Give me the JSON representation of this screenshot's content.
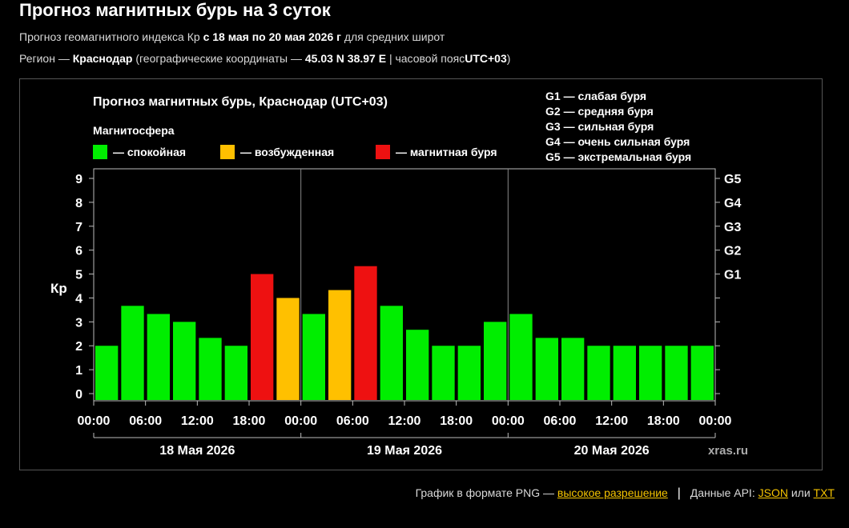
{
  "header": {
    "title": "Прогноз магнитных бурь на 3 суток",
    "sub1": {
      "prefix": "Прогноз геомагнитного индекса Кр",
      "range": "с 18 мая по 20 мая 2026 г",
      "suffix": "для средних широт"
    },
    "sub2": {
      "prefix": "Регион —",
      "region": "Краснодар",
      "coords_prefix": "(географические координаты —",
      "coords": "45.03 N 38.97 E",
      "tz_prefix": "| часовой пояс",
      "tz": "UTC+03",
      "suffix": ")"
    }
  },
  "chart_data": {
    "type": "bar",
    "title": "Прогноз магнитных бурь, Краснодар (UTC+03)",
    "ylabel": "Кр",
    "ylim": [
      0,
      9
    ],
    "yticks": [
      "0",
      "1",
      "2",
      "3",
      "4",
      "5",
      "6",
      "7",
      "8",
      "9"
    ],
    "right_ticks": [
      {
        "value": 5,
        "label": "G1"
      },
      {
        "value": 6,
        "label": "G2"
      },
      {
        "value": 7,
        "label": "G3"
      },
      {
        "value": 8,
        "label": "G4"
      },
      {
        "value": 9,
        "label": "G5"
      }
    ],
    "xticks": [
      "00:00",
      "06:00",
      "12:00",
      "18:00",
      "00:00",
      "06:00",
      "12:00",
      "18:00",
      "00:00",
      "06:00",
      "12:00",
      "18:00",
      "00:00"
    ],
    "days": [
      "18 Мая 2026",
      "19 Мая 2026",
      "20 Мая 2026"
    ],
    "values": [
      2.0,
      3.67,
      3.33,
      3.0,
      2.33,
      2.0,
      5.0,
      4.0,
      3.33,
      4.33,
      5.33,
      3.67,
      2.67,
      2.0,
      2.0,
      3.0,
      3.33,
      2.33,
      2.33,
      2.0,
      2.0,
      2.0,
      2.0,
      2.0
    ],
    "levels": [
      "calm",
      "calm",
      "calm",
      "calm",
      "calm",
      "calm",
      "storm",
      "active",
      "calm",
      "active",
      "storm",
      "calm",
      "calm",
      "calm",
      "calm",
      "calm",
      "calm",
      "calm",
      "calm",
      "calm",
      "calm",
      "calm",
      "calm",
      "calm"
    ],
    "legend_title": "Магнитосфера",
    "legend": [
      {
        "key": "calm",
        "label": "— спокойная",
        "color": "#00ee00"
      },
      {
        "key": "active",
        "label": "— возбужденная",
        "color": "#ffc000"
      },
      {
        "key": "storm",
        "label": "— магнитная буря",
        "color": "#ee1111"
      }
    ],
    "g_scale": [
      "G1 — слабая буря",
      "G2 — средняя буря",
      "G3 — сильная буря",
      "G4 — очень сильная буря",
      "G5 — экстремальная буря"
    ],
    "watermark": "xras.ru",
    "grid": false
  },
  "footer": {
    "png_prefix": "График в формате PNG —",
    "png_link": "высокое разрешение",
    "api_prefix": "Данные API:",
    "json_link": "JSON",
    "or": "или",
    "txt_link": "TXT"
  }
}
